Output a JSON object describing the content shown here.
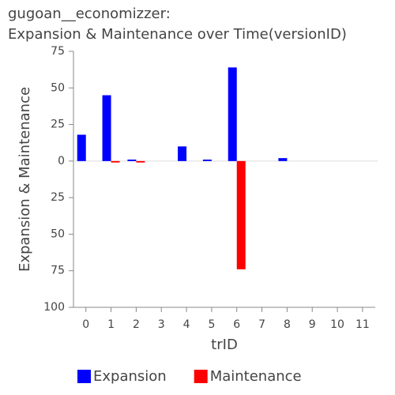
{
  "chart_data": {
    "type": "bar",
    "title": "gugoan__economizzer:",
    "subtitle": "Expansion & Maintenance over Time(versionID)",
    "x_label": "trID",
    "y_label": "Expansion & Maintenance",
    "categories": [
      "0",
      "1",
      "2",
      "3",
      "4",
      "5",
      "6",
      "7",
      "8",
      "9",
      "10",
      "11"
    ],
    "series": [
      {
        "name": "Expansion",
        "color": "#0000ff",
        "values": [
          18,
          45,
          1,
          0,
          10,
          1,
          64,
          0,
          2,
          0,
          0,
          0
        ]
      },
      {
        "name": "Maintenance",
        "color": "#ff0000",
        "values": [
          0,
          -1,
          -1,
          0,
          0,
          0,
          -74,
          0,
          0,
          0,
          0,
          0
        ]
      }
    ],
    "ylim": [
      -100,
      75
    ],
    "yticks": [
      75,
      50,
      25,
      0,
      {
        "value": -25,
        "label": "25"
      },
      {
        "value": -50,
        "label": "50"
      },
      {
        "value": -75,
        "label": "75"
      },
      {
        "value": -100,
        "label": "100"
      }
    ],
    "grid": false,
    "legend": "bottom"
  }
}
